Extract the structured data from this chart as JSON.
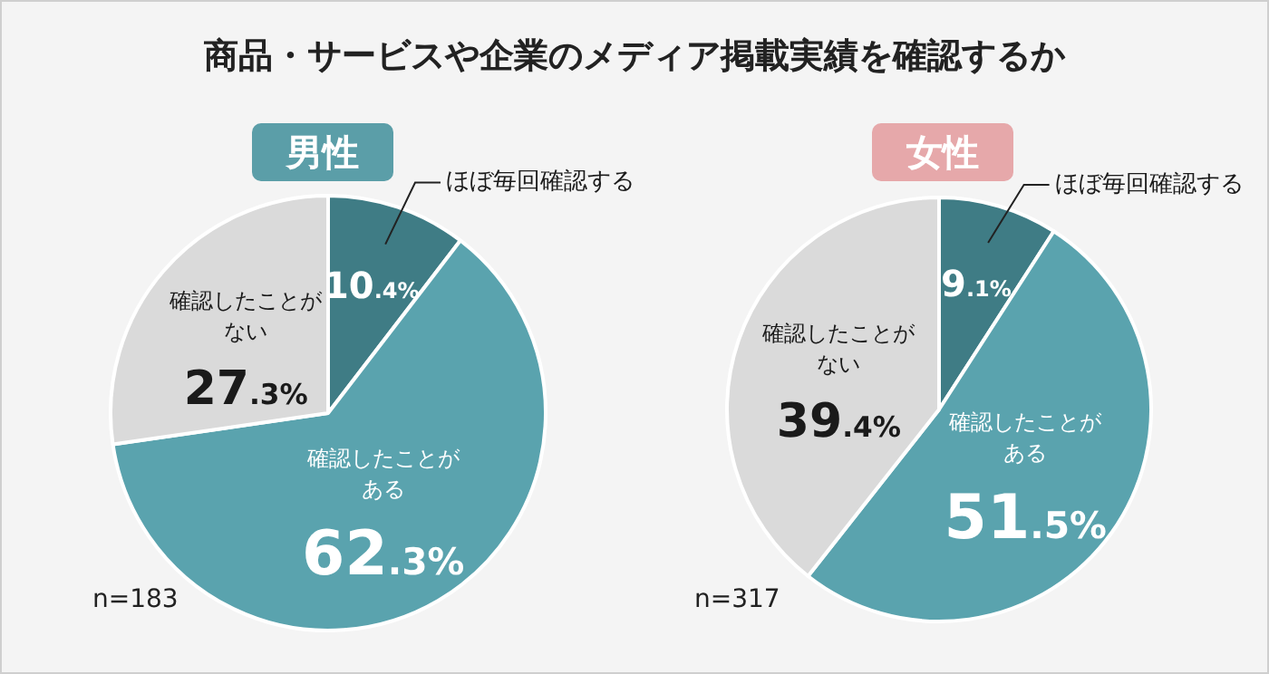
{
  "chart_data": [
    {
      "type": "pie",
      "title": "商品・サービスや企業のメディア掲載実績を確認するか",
      "subtitle": "男性",
      "categories": [
        "ほぼ毎回確認する",
        "確認したことがある",
        "確認したことがない"
      ],
      "values": [
        10.4,
        62.3,
        27.3
      ],
      "colors": [
        "#3f7c85",
        "#5aa3ae",
        "#dadada"
      ],
      "value_labels": [
        "10.4%",
        "62.3%",
        "27.3%"
      ],
      "legend": false,
      "annotations": [
        "n=183"
      ]
    },
    {
      "type": "pie",
      "subtitle": "女性",
      "categories": [
        "ほぼ毎回確認する",
        "確認したことがある",
        "確認したことがない"
      ],
      "values": [
        9.1,
        51.5,
        39.4
      ],
      "colors": [
        "#3f7c85",
        "#5aa3ae",
        "#dadada"
      ],
      "value_labels": [
        "9.1%",
        "51.5%",
        "39.4%"
      ],
      "legend": false,
      "annotations": [
        "n=317"
      ]
    }
  ]
}
